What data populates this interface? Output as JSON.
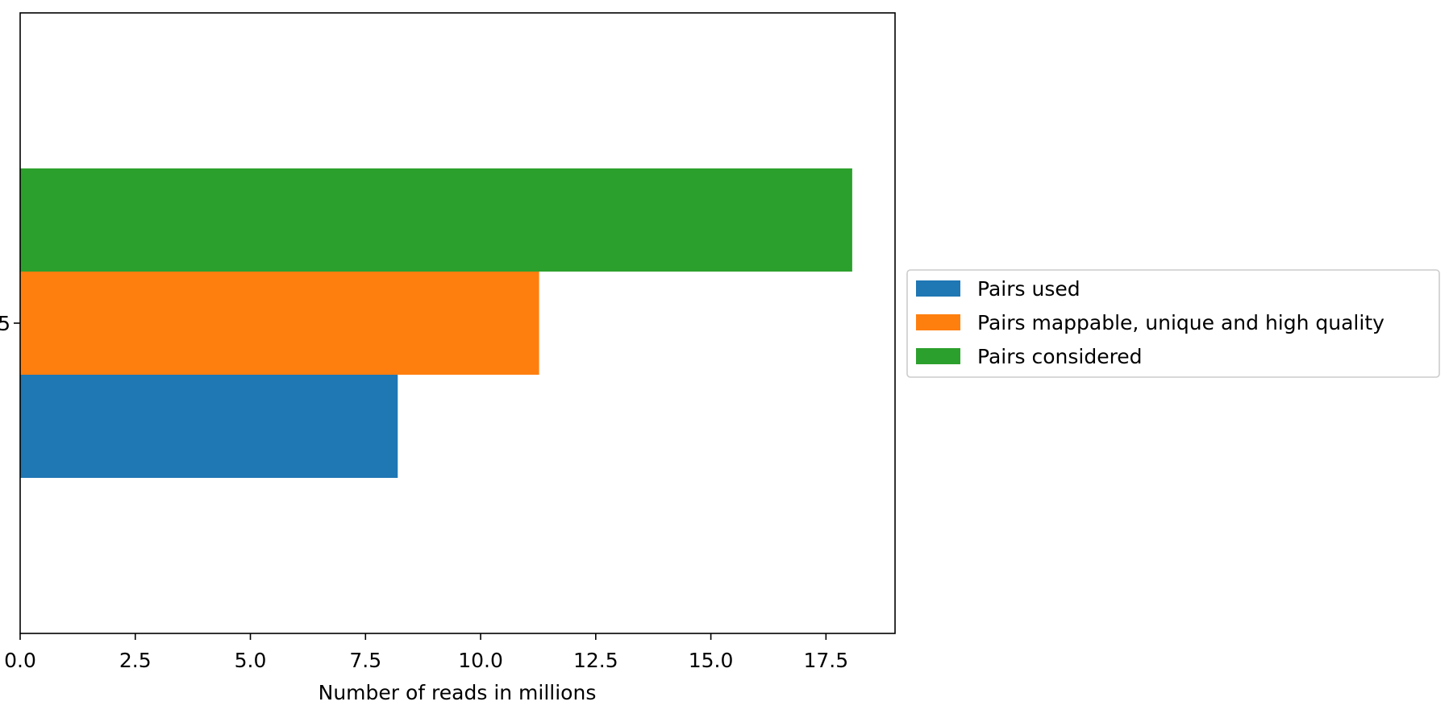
{
  "chart_data": {
    "type": "bar",
    "orientation": "horizontal",
    "categories": [
      "5"
    ],
    "series": [
      {
        "name": "Pairs used",
        "values": [
          8.2
        ],
        "color": "#1f77b4"
      },
      {
        "name": "Pairs mappable, unique and high quality",
        "values": [
          11.27
        ],
        "color": "#ff7f0e"
      },
      {
        "name": "Pairs considered",
        "values": [
          18.07
        ],
        "color": "#2ca02c"
      }
    ],
    "xlabel": "Number of reads in millions",
    "ylabel": "",
    "title": "",
    "xlim": [
      0,
      19.0
    ],
    "xticks": [
      "0.0",
      "2.5",
      "5.0",
      "7.5",
      "10.0",
      "12.5",
      "15.0",
      "17.5"
    ],
    "grid": false,
    "legend_position": "center-right, outside plot"
  }
}
